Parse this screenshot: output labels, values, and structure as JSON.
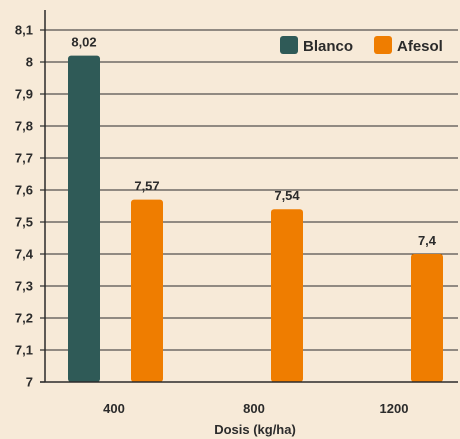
{
  "chart_data": {
    "type": "bar",
    "title": "",
    "xlabel": "Dosis (kg/ha)",
    "ylabel": "",
    "ylim": [
      7,
      8.1
    ],
    "yticks": [
      "7",
      "7,1",
      "7,2",
      "7,3",
      "7,4",
      "7,5",
      "7,6",
      "7,7",
      "7,8",
      "7,9",
      "8",
      "8,1"
    ],
    "grid": true,
    "legend_position": "top-right",
    "categories": [
      "400",
      "800",
      "1200"
    ],
    "series": [
      {
        "name": "Blanco",
        "color": "#2f5a57",
        "values": [
          8.02,
          null,
          null
        ],
        "labels": [
          "8,02",
          "",
          ""
        ]
      },
      {
        "name": "Afesol",
        "color": "#ef7d00",
        "values": [
          7.57,
          7.54,
          7.4
        ],
        "labels": [
          "7,57",
          "7,54",
          "7,4"
        ]
      }
    ]
  }
}
